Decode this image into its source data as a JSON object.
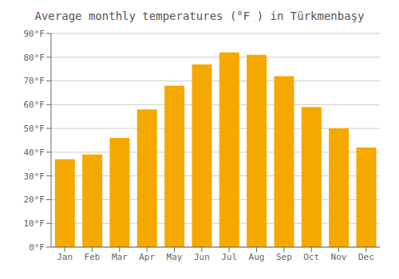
{
  "chart_data": {
    "type": "bar",
    "title": "Average monthly temperatures (°F ) in Türkmenbaşy",
    "categories": [
      "Jan",
      "Feb",
      "Mar",
      "Apr",
      "May",
      "Jun",
      "Jul",
      "Aug",
      "Sep",
      "Oct",
      "Nov",
      "Dec"
    ],
    "values": [
      37,
      39,
      46,
      58,
      68,
      77,
      82,
      81,
      72,
      59,
      50,
      42
    ],
    "color": "#F5A800",
    "ylim": [
      0,
      90
    ],
    "yticks": [
      {
        "value": 0,
        "label": "0°F"
      },
      {
        "value": 10,
        "label": "10°F"
      },
      {
        "value": 20,
        "label": "20°F"
      },
      {
        "value": 30,
        "label": "30°F"
      },
      {
        "value": 40,
        "label": "40°F"
      },
      {
        "value": 50,
        "label": "50°F"
      },
      {
        "value": 60,
        "label": "60°F"
      },
      {
        "value": 70,
        "label": "70°F"
      },
      {
        "value": 80,
        "label": "80°F"
      },
      {
        "value": 90,
        "label": "90°F"
      }
    ],
    "grid": true
  }
}
